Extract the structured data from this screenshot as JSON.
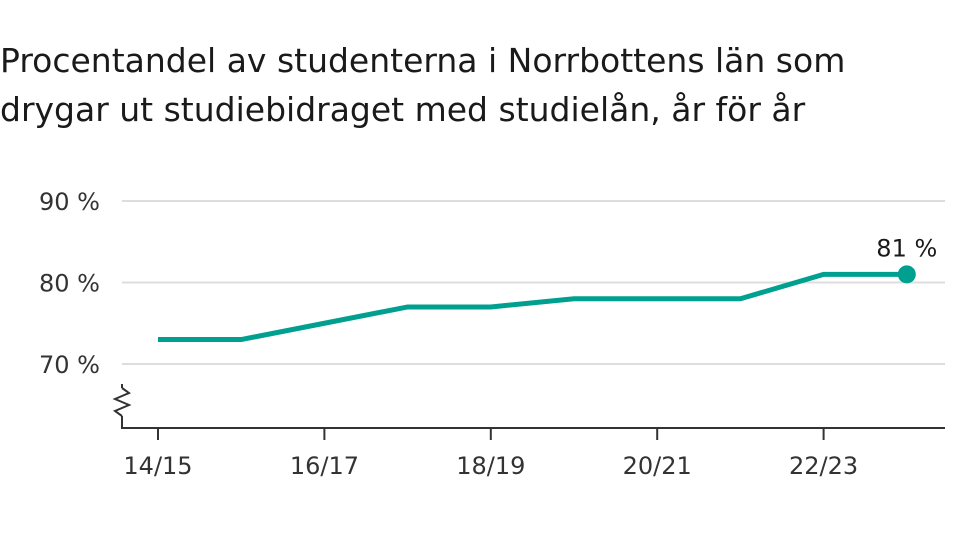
{
  "chart_data": {
    "type": "line",
    "title": "Procentandel av studenterna i Norrbottens län som drygar ut studiebidraget med studielån, år för år",
    "xlabel": "",
    "ylabel": "",
    "x": [
      "14/15",
      "15/16",
      "16/17",
      "17/18",
      "18/19",
      "19/20",
      "20/21",
      "21/22",
      "22/23",
      "23/24"
    ],
    "x_tick_labels": [
      "14/15",
      "16/17",
      "18/19",
      "20/21",
      "22/23"
    ],
    "y_tick_labels": [
      "70 %",
      "80 %",
      "90 %"
    ],
    "series": [
      {
        "values": [
          73,
          73,
          75,
          77,
          77,
          78,
          78,
          78,
          81,
          81
        ],
        "color": "#00a090"
      }
    ],
    "end_label": "81 %",
    "ylim": [
      62,
      92
    ],
    "y_ticks": [
      70,
      80,
      90
    ],
    "axis_break": true,
    "grid": true,
    "gridline_color": "#dddddd",
    "axis_color": "#333333"
  }
}
